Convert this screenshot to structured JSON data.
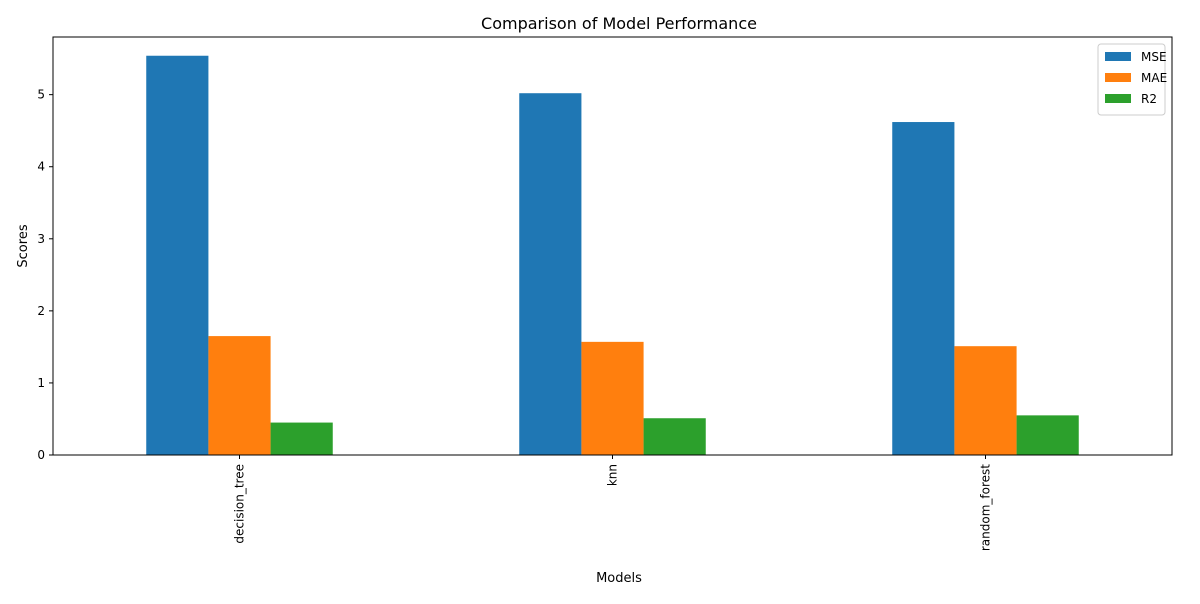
{
  "chart_data": {
    "type": "bar",
    "title": "Comparison of Model Performance",
    "xlabel": "Models",
    "ylabel": "Scores",
    "categories": [
      "decision_tree",
      "knn",
      "random_forest"
    ],
    "series": [
      {
        "name": "MSE",
        "color": "#1f77b4",
        "values": [
          5.54,
          5.02,
          4.62
        ]
      },
      {
        "name": "MAE",
        "color": "#ff7f0e",
        "values": [
          1.65,
          1.57,
          1.51
        ]
      },
      {
        "name": "R2",
        "color": "#2ca02c",
        "values": [
          0.45,
          0.51,
          0.55
        ]
      }
    ],
    "ylim": [
      0,
      5.8
    ],
    "yticks": [
      "0",
      "1",
      "2",
      "3",
      "4",
      "5"
    ],
    "legend_position": "top-right",
    "grid": false
  }
}
